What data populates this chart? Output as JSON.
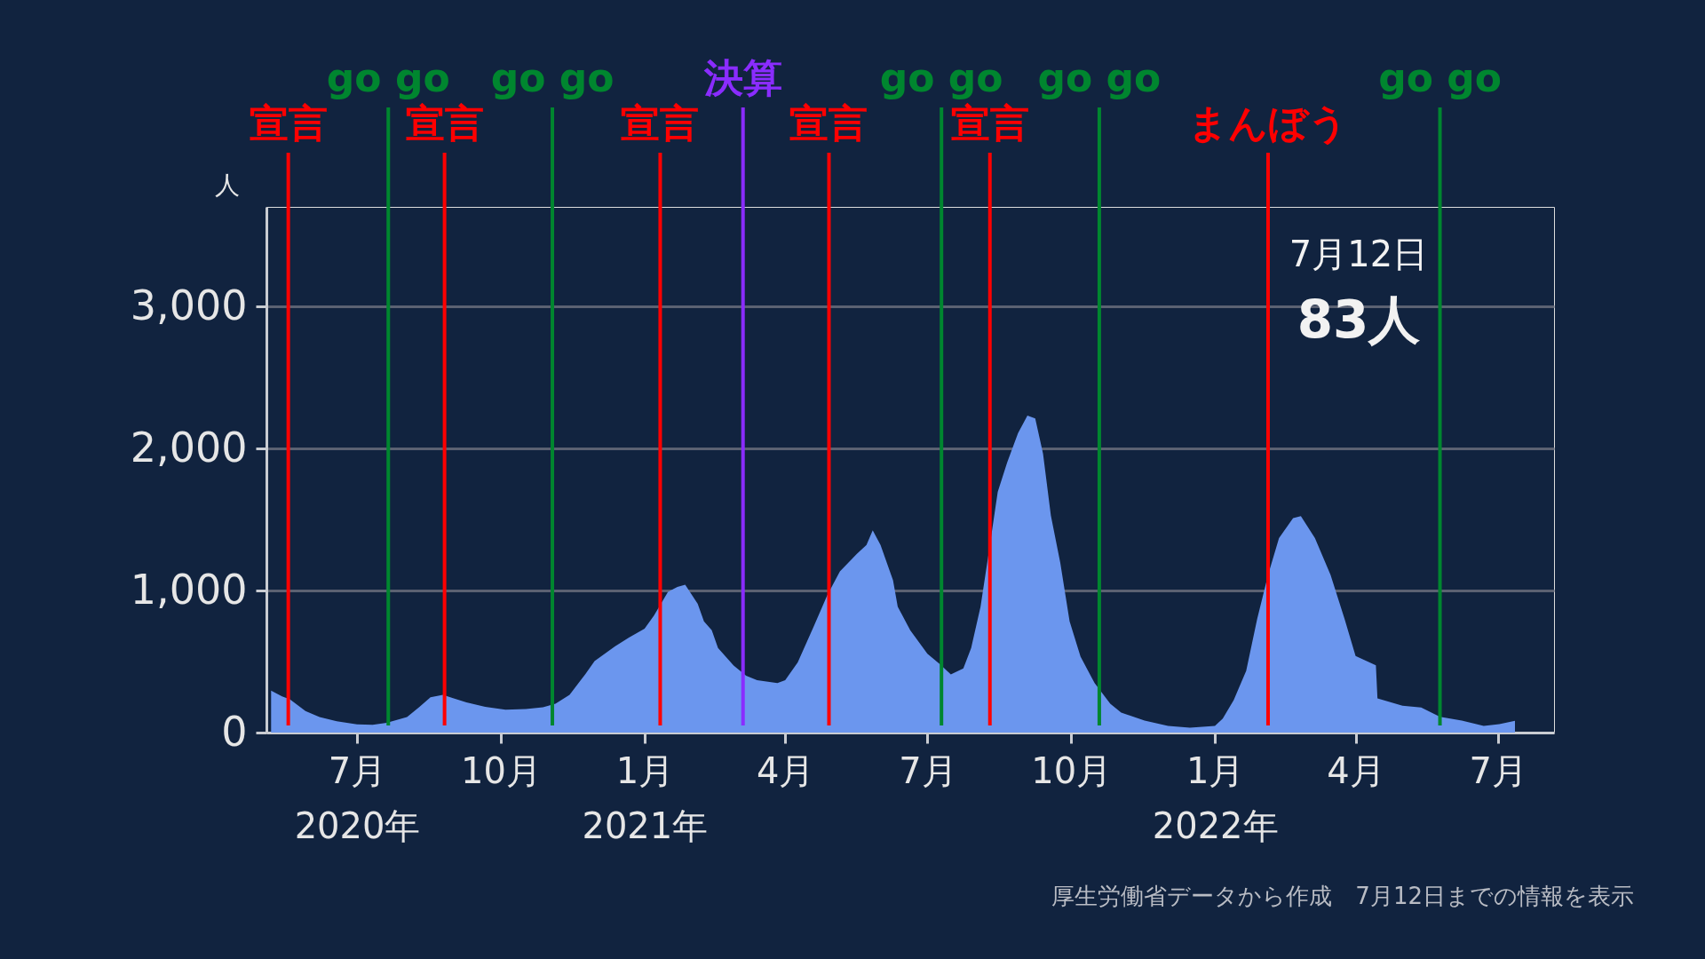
{
  "chart_data": {
    "type": "area",
    "ylabel": "人",
    "xlim": [
      "2020-05-04",
      "2022-08-06"
    ],
    "ylim": [
      0,
      3700
    ],
    "xticks": [
      {
        "value": "2020-07-01",
        "label": "7月\n2020年"
      },
      {
        "value": "2020-10-01",
        "label": "10月"
      },
      {
        "value": "2021-01-01",
        "label": "1月\n2021年"
      },
      {
        "value": "2021-04-01",
        "label": "4月"
      },
      {
        "value": "2021-07-01",
        "label": "7月"
      },
      {
        "value": "2021-10-01",
        "label": "10月"
      },
      {
        "value": "2022-01-01",
        "label": "1月\n2022年"
      },
      {
        "value": "2022-04-01",
        "label": "4月"
      },
      {
        "value": "2022-07-01",
        "label": "7月"
      }
    ],
    "yticks": [
      0,
      {
        "value": 1000,
        "label": "1,000"
      },
      {
        "value": 2000,
        "label": "2,000"
      },
      {
        "value": 3000,
        "label": "3,000"
      }
    ],
    "grid": "y",
    "series": [
      {
        "color": "#6b96ee",
        "x": [
          "2020-05-07",
          "2020-05-14",
          "2020-05-19",
          "2020-05-29",
          "2020-06-07",
          "2020-06-18",
          "2020-07-01",
          "2020-07-11",
          "2020-07-20",
          "2020-08-02",
          "2020-08-10",
          "2020-08-17",
          "2020-08-25",
          "2020-08-31",
          "2020-09-09",
          "2020-09-21",
          "2020-10-04",
          "2020-10-17",
          "2020-10-28",
          "2020-11-05",
          "2020-11-14",
          "2020-11-24",
          "2020-11-30",
          "2020-12-13",
          "2020-12-22",
          "2021-01-01",
          "2021-01-07",
          "2021-01-16",
          "2021-01-22",
          "2021-01-27",
          "2021-02-04",
          "2021-02-08",
          "2021-02-13",
          "2021-02-17",
          "2021-02-27",
          "2021-03-07",
          "2021-03-14",
          "2021-03-27",
          "2021-04-01",
          "2021-04-09",
          "2021-04-19",
          "2021-04-28",
          "2021-05-06",
          "2021-05-17",
          "2021-05-23",
          "2021-05-27",
          "2021-06-01",
          "2021-06-09",
          "2021-06-12",
          "2021-06-20",
          "2021-07-01",
          "2021-07-09",
          "2021-07-16",
          "2021-07-24",
          "2021-07-29",
          "2021-08-04",
          "2021-08-10",
          "2021-08-15",
          "2021-08-21",
          "2021-08-28",
          "2021-09-03",
          "2021-09-08",
          "2021-09-13",
          "2021-09-18",
          "2021-09-24",
          "2021-09-30",
          "2021-10-07",
          "2021-10-16",
          "2021-10-26",
          "2021-11-02",
          "2021-11-17",
          "2021-12-02",
          "2021-12-16",
          "2022-01-01",
          "2022-01-06",
          "2022-01-13",
          "2022-01-21",
          "2022-01-28",
          "2022-02-04",
          "2022-02-11",
          "2022-02-20",
          "2022-02-25",
          "2022-03-06",
          "2022-03-16",
          "2022-03-25",
          "2022-04-01",
          "2022-04-14",
          "2022-04-15",
          "2022-05-01",
          "2022-05-13",
          "2022-05-25",
          "2022-06-08",
          "2022-06-22",
          "2022-07-02",
          "2022-07-12"
        ],
        "values": [
          296,
          255,
          234,
          151,
          110,
          79,
          58,
          54,
          68,
          110,
          182,
          248,
          265,
          244,
          213,
          182,
          161,
          166,
          178,
          203,
          265,
          410,
          503,
          607,
          669,
          731,
          824,
          990,
          1025,
          1041,
          907,
          783,
          720,
          596,
          472,
          400,
          369,
          348,
          369,
          493,
          741,
          969,
          1135,
          1259,
          1321,
          1424,
          1321,
          1072,
          886,
          720,
          555,
          482,
          410,
          451,
          596,
          886,
          1321,
          1694,
          1900,
          2108,
          2232,
          2211,
          1963,
          1528,
          1197,
          783,
          534,
          348,
          203,
          141,
          85,
          47,
          34,
          47,
          98,
          228,
          435,
          798,
          1109,
          1368,
          1510,
          1523,
          1368,
          1109,
          798,
          539,
          474,
          241,
          189,
          176,
          111,
          85,
          47,
          60,
          83
        ]
      }
    ],
    "ref_lines": [
      {
        "axis": "x",
        "value": "2020-05-18",
        "label": "宣言",
        "color": "#ff0000"
      },
      {
        "axis": "x",
        "value": "2020-07-21",
        "label": "go go",
        "color": "#00862f"
      },
      {
        "axis": "x",
        "value": "2020-08-26",
        "label": "宣言",
        "color": "#ff0000"
      },
      {
        "axis": "x",
        "value": "2020-11-03",
        "label": "go go",
        "color": "#00862f"
      },
      {
        "axis": "x",
        "value": "2021-01-11",
        "label": "宣言",
        "color": "#ff0000"
      },
      {
        "axis": "x",
        "value": "2021-03-05",
        "label": "決算",
        "color": "#8a2cff"
      },
      {
        "axis": "x",
        "value": "2021-04-29",
        "label": "宣言",
        "color": "#ff0000"
      },
      {
        "axis": "x",
        "value": "2021-07-10",
        "label": "go go",
        "color": "#00862f"
      },
      {
        "axis": "x",
        "value": "2021-08-10",
        "label": "宣言",
        "color": "#ff0000"
      },
      {
        "axis": "x",
        "value": "2021-10-19",
        "label": "go go",
        "color": "#00862f"
      },
      {
        "axis": "x",
        "value": "2022-02-04",
        "label": "まんぼう",
        "color": "#ff0000"
      },
      {
        "axis": "x",
        "value": "2022-05-25",
        "label": "go go",
        "color": "#00862f"
      }
    ],
    "annotations": [
      "7月12日",
      "83人",
      "厚生労働省データから作成　7月12日までの情報を表示"
    ]
  }
}
